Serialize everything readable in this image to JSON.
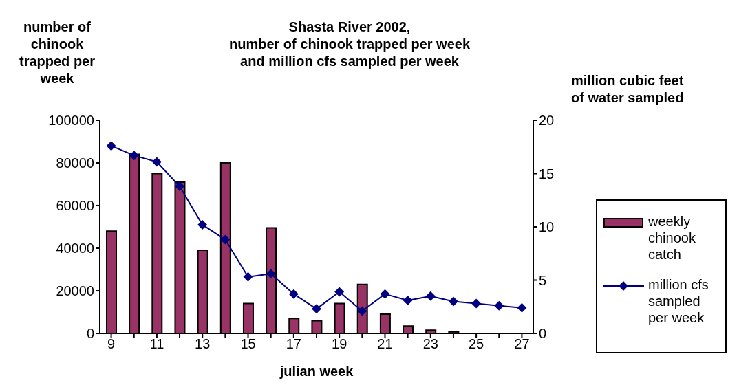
{
  "chart_data": {
    "type": "bar",
    "title": "Shasta River 2002,\nnumber of chinook trapped per week\nand million cfs sampled per week",
    "xlabel": "julian week",
    "ylabel": "number of\nchinook\ntrapped per\nweek",
    "y2label": "million cubic feet\nof water sampled",
    "categories": [
      "9",
      null,
      "11",
      null,
      "13",
      null,
      "15",
      null,
      "17",
      null,
      "19",
      null,
      "21",
      null,
      "23",
      null,
      "25",
      null,
      "27"
    ],
    "series": [
      {
        "name": "weekly chinook catch",
        "color": "#993366",
        "values": [
          48000,
          84000,
          75000,
          71000,
          39000,
          80000,
          14000,
          49500,
          7000,
          6000,
          14000,
          23000,
          9000,
          3500,
          1500,
          700,
          0,
          0,
          0
        ]
      },
      {
        "name": "million cfs sampled per week",
        "type": "line",
        "axis": "y2",
        "color": "#000080",
        "marker": "diamond",
        "values": [
          17.6,
          16.7,
          16.1,
          13.8,
          10.2,
          8.8,
          5.3,
          5.6,
          3.7,
          2.3,
          3.9,
          2.1,
          3.7,
          3.1,
          3.5,
          3.0,
          2.8,
          2.6,
          2.4
        ]
      }
    ],
    "ylim": [
      0,
      100000
    ],
    "yticks": [
      0,
      20000,
      40000,
      60000,
      80000,
      100000
    ],
    "y2lim": [
      0,
      20
    ],
    "y2ticks": [
      0,
      5,
      10,
      15,
      20
    ],
    "legend": "right",
    "grid": false
  }
}
